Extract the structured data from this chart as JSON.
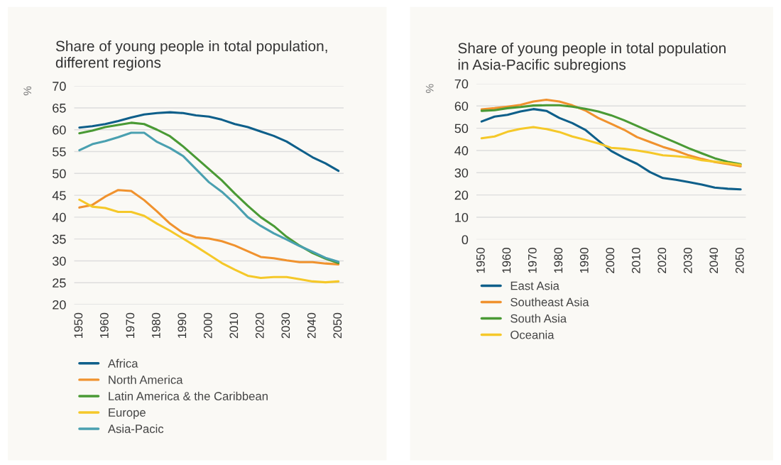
{
  "chart_data": [
    {
      "type": "line",
      "title": "Share of young people in total population,\ndifferent regions",
      "ylabel": "%",
      "x": [
        1950,
        1955,
        1960,
        1965,
        1970,
        1975,
        1980,
        1985,
        1990,
        1995,
        2000,
        2005,
        2010,
        2015,
        2020,
        2025,
        2030,
        2035,
        2040,
        2045,
        2050
      ],
      "series": [
        {
          "name": "Africa",
          "color": "#0e5f8a",
          "values": [
            60.5,
            60.8,
            61.3,
            62.0,
            62.8,
            63.5,
            63.8,
            64.0,
            63.8,
            63.3,
            63.0,
            62.3,
            61.3,
            60.6,
            59.6,
            58.6,
            57.3,
            55.5,
            53.7,
            52.3,
            50.6
          ]
        },
        {
          "name": "North America",
          "color": "#f0922e",
          "values": [
            42.2,
            42.8,
            44.7,
            46.2,
            46.0,
            43.9,
            41.3,
            38.5,
            36.4,
            35.4,
            35.1,
            34.5,
            33.5,
            32.2,
            30.9,
            30.6,
            30.1,
            29.7,
            29.7,
            29.4,
            29.2
          ]
        },
        {
          "name": "Latin America & the Caribbean",
          "color": "#4a9a35",
          "values": [
            59.2,
            59.8,
            60.6,
            61.1,
            61.6,
            61.3,
            60.0,
            58.5,
            56.2,
            53.6,
            51.0,
            48.4,
            45.4,
            42.6,
            40.0,
            38.0,
            35.5,
            33.5,
            31.8,
            30.5,
            29.5
          ]
        },
        {
          "name": "Europe",
          "color": "#f5c829",
          "values": [
            44.0,
            42.4,
            42.1,
            41.2,
            41.2,
            40.3,
            38.5,
            36.9,
            35.1,
            33.3,
            31.4,
            29.5,
            28.0,
            26.6,
            26.1,
            26.3,
            26.3,
            25.8,
            25.3,
            25.1,
            25.3
          ]
        },
        {
          "name": "Asia-Pacic",
          "color": "#4aa0b0",
          "values": [
            55.3,
            56.7,
            57.4,
            58.3,
            59.3,
            59.3,
            57.2,
            55.8,
            54.0,
            51.0,
            48.0,
            45.8,
            43.1,
            40.0,
            38.0,
            36.3,
            34.9,
            33.4,
            32.1,
            30.7,
            29.8
          ]
        }
      ],
      "xlim": [
        1948,
        2052
      ],
      "xticks": [
        1950,
        1960,
        1970,
        1980,
        1990,
        2000,
        2010,
        2020,
        2030,
        2040,
        2050
      ],
      "ylim": [
        20,
        70
      ],
      "yticks": [
        20,
        25,
        30,
        35,
        40,
        45,
        50,
        55,
        60,
        65,
        70
      ],
      "grid": "y",
      "legend": "bottom",
      "marker": "none",
      "line_style": "solid"
    },
    {
      "type": "line",
      "title": "Share of young people in total population\nin Asia-Pacific subregions",
      "ylabel": "%",
      "x": [
        1950,
        1955,
        1960,
        1965,
        1970,
        1975,
        1980,
        1985,
        1990,
        1995,
        2000,
        2005,
        2010,
        2015,
        2020,
        2025,
        2030,
        2035,
        2040,
        2045,
        2050
      ],
      "series": [
        {
          "name": "East Asia",
          "color": "#0e5f8a",
          "values": [
            53.0,
            55.2,
            56.0,
            57.5,
            58.6,
            57.8,
            54.6,
            52.3,
            49.3,
            44.5,
            39.8,
            36.7,
            34.0,
            30.3,
            27.6,
            26.8,
            25.8,
            24.7,
            23.3,
            22.8,
            22.5
          ]
        },
        {
          "name": "Southeast Asia",
          "color": "#f0922e",
          "values": [
            58.5,
            59.0,
            59.7,
            60.5,
            62.0,
            62.8,
            62.0,
            60.3,
            58.0,
            54.6,
            52.0,
            49.3,
            46.0,
            43.8,
            41.6,
            39.9,
            37.8,
            36.2,
            34.8,
            33.9,
            32.9
          ]
        },
        {
          "name": "South Asia",
          "color": "#4a9a35",
          "values": [
            57.8,
            58.1,
            59.0,
            59.5,
            60.2,
            60.3,
            60.3,
            59.7,
            58.7,
            57.5,
            55.8,
            53.6,
            51.0,
            48.5,
            46.0,
            43.5,
            41.0,
            38.7,
            36.5,
            34.9,
            33.8
          ]
        },
        {
          "name": "Oceania",
          "color": "#f5c829",
          "values": [
            45.5,
            46.3,
            48.4,
            49.7,
            50.5,
            49.6,
            48.3,
            46.3,
            44.8,
            43.2,
            41.2,
            40.8,
            40.0,
            39.0,
            37.8,
            37.4,
            36.9,
            35.6,
            35.0,
            34.3,
            33.5
          ]
        }
      ],
      "xlim": [
        1948,
        2052
      ],
      "xticks": [
        1950,
        1960,
        1970,
        1980,
        1990,
        2000,
        2010,
        2020,
        2030,
        2040,
        2050
      ],
      "ylim": [
        0,
        70
      ],
      "yticks": [
        0,
        10,
        20,
        30,
        40,
        50,
        60,
        70
      ],
      "grid": "y",
      "legend": "bottom",
      "marker": "none",
      "line_style": "solid"
    }
  ]
}
